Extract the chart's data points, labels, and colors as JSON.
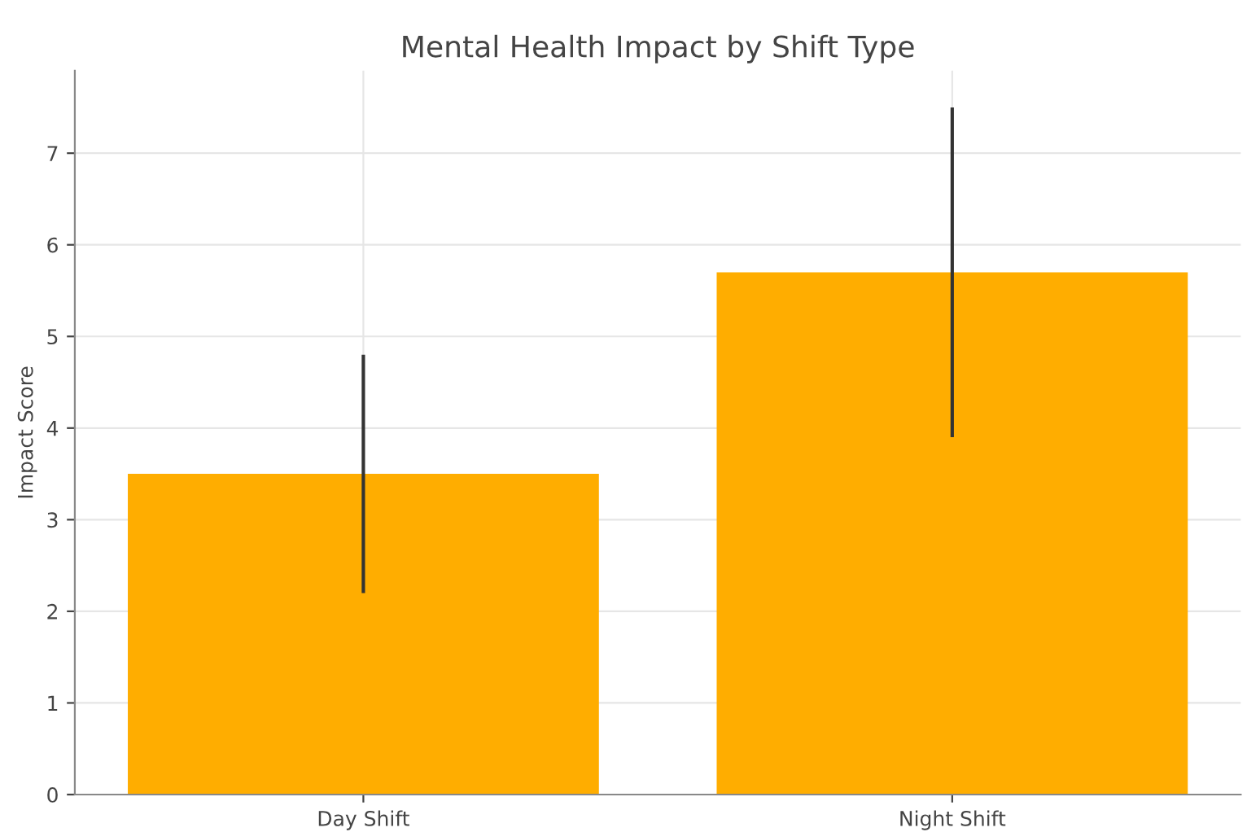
{
  "chart_data": {
    "type": "bar",
    "title": "Mental Health Impact by Shift Type",
    "ylabel": "Impact Score",
    "categories": [
      "Day Shift",
      "Night Shift"
    ],
    "values": [
      3.5,
      5.7
    ],
    "errors": [
      1.3,
      1.8
    ],
    "color": "#ffad00",
    "ylim": [
      0,
      7.9
    ],
    "yticks": [
      0,
      1,
      2,
      3,
      4,
      5,
      6,
      7
    ],
    "grid": true
  }
}
